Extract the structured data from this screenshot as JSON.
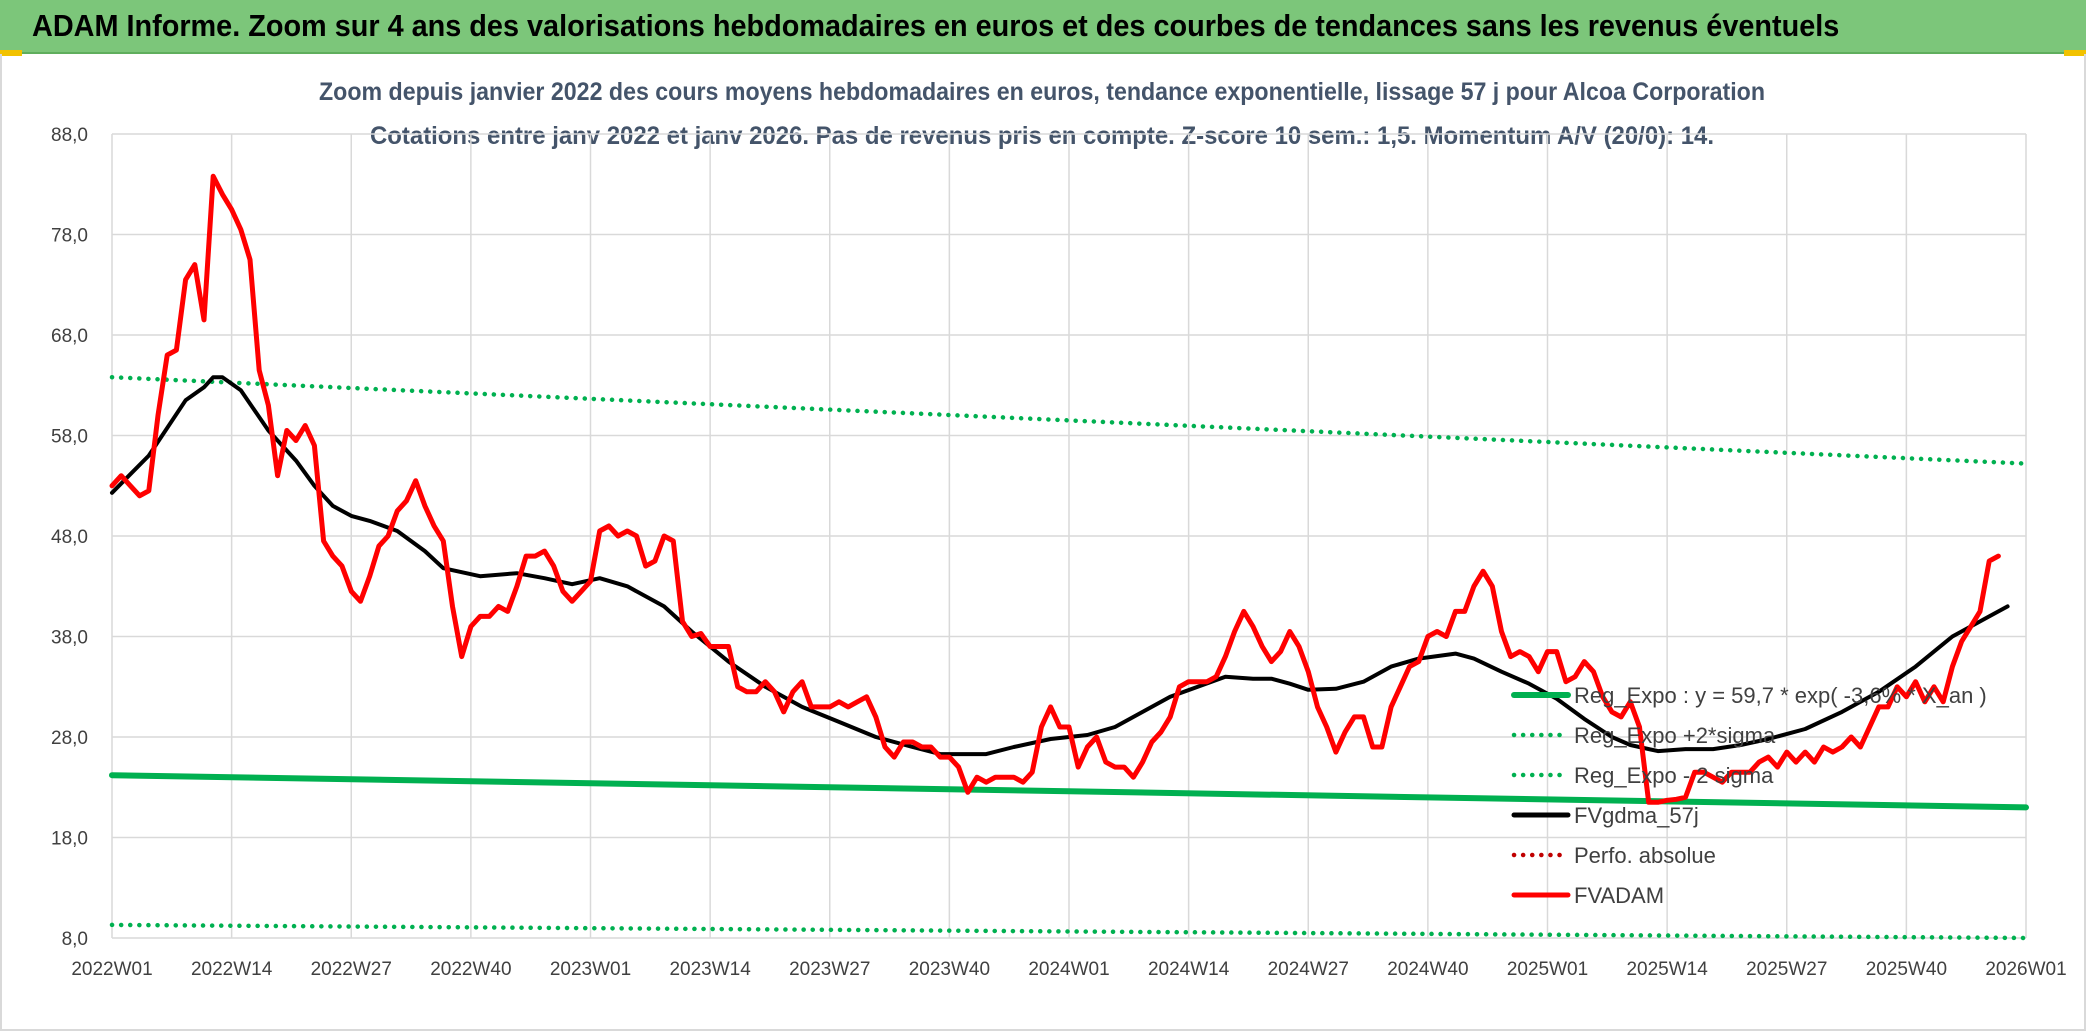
{
  "header": {
    "title": "ADAM Informe. Zoom sur 4 ans des valorisations hebdomadaires en euros et des courbes de tendances sans les revenus éventuels"
  },
  "colors": {
    "banner": "#7cc67a",
    "green": "#00b050",
    "red": "#ff0000",
    "black": "#000000",
    "red_dotted": "#c00000",
    "grid": "#d9d9d9",
    "axis_text": "#404040",
    "title_text": "#44546a"
  },
  "chart_data": {
    "type": "line",
    "title": "Zoom depuis janvier 2022 des cours moyens hebdomadaires en euros, tendance exponentielle, lissage 57 j pour Alcoa Corporation",
    "subtitle": "Cotations entre janv 2022 et janv 2026. Pas de revenus pris en compte. Z-score 10 sem.: 1,5. Momentum A/V (20/0): 14.",
    "xlabel": "",
    "ylabel": "",
    "ylim": [
      8,
      88
    ],
    "y_ticks": [
      "8,0",
      "18,0",
      "28,0",
      "38,0",
      "48,0",
      "58,0",
      "68,0",
      "78,0",
      "88,0"
    ],
    "x_ticks": [
      "2022W01",
      "2022W14",
      "2022W27",
      "2022W40",
      "2023W01",
      "2023W14",
      "2023W27",
      "2023W40",
      "2024W01",
      "2024W14",
      "2024W27",
      "2024W40",
      "2025W01",
      "2025W14",
      "2025W27",
      "2025W40",
      "2026W01"
    ],
    "grid": true,
    "legend_position": "right",
    "series": [
      {
        "name": "Reg_Expo : y = 59,7 * exp( -3,6% * X_an )",
        "style": "solid",
        "color": "#00b050",
        "values": [
          [
            0,
            24.2
          ],
          [
            208,
            21.0
          ]
        ]
      },
      {
        "name": "Reg_Expo +2*sigma",
        "style": "dotted",
        "color": "#00b050",
        "values": [
          [
            0,
            63.8
          ],
          [
            208,
            55.2
          ]
        ]
      },
      {
        "name": "Reg_Expo - 2 sigma",
        "style": "dotted",
        "color": "#00b050",
        "values": [
          [
            0,
            9.3
          ],
          [
            208,
            8.0
          ]
        ]
      },
      {
        "name": "FVgdma_57j",
        "style": "solid",
        "color": "#000000",
        "values": [
          [
            0,
            52.3
          ],
          [
            4,
            56
          ],
          [
            8,
            61.5
          ],
          [
            10,
            62.8
          ],
          [
            11,
            63.8
          ],
          [
            12,
            63.8
          ],
          [
            14,
            62.5
          ],
          [
            17,
            58.5
          ],
          [
            20,
            55.5
          ],
          [
            22,
            53
          ],
          [
            24,
            51
          ],
          [
            26,
            50
          ],
          [
            28,
            49.5
          ],
          [
            31,
            48.5
          ],
          [
            34,
            46.5
          ],
          [
            36,
            44.8
          ],
          [
            40,
            44
          ],
          [
            44,
            44.3
          ],
          [
            47,
            43.8
          ],
          [
            50,
            43.2
          ],
          [
            53,
            43.8
          ],
          [
            56,
            43
          ],
          [
            60,
            41
          ],
          [
            63,
            38.5
          ],
          [
            67,
            35.5
          ],
          [
            71,
            33
          ],
          [
            75,
            31
          ],
          [
            79,
            29.5
          ],
          [
            83,
            28
          ],
          [
            87,
            27
          ],
          [
            90,
            26.3
          ],
          [
            95,
            26.3
          ],
          [
            98,
            27
          ],
          [
            102,
            27.8
          ],
          [
            106,
            28.2
          ],
          [
            109,
            29
          ],
          [
            112,
            30.5
          ],
          [
            115,
            32
          ],
          [
            118,
            33
          ],
          [
            121,
            34
          ],
          [
            124,
            33.8
          ],
          [
            126,
            33.8
          ],
          [
            128,
            33.3
          ],
          [
            130,
            32.7
          ],
          [
            133,
            32.8
          ],
          [
            136,
            33.5
          ],
          [
            139,
            35
          ],
          [
            142,
            35.8
          ],
          [
            146,
            36.3
          ],
          [
            148,
            35.8
          ],
          [
            151,
            34.5
          ],
          [
            154,
            33.3
          ],
          [
            157,
            31.8
          ],
          [
            160,
            29.8
          ],
          [
            163,
            28
          ],
          [
            165,
            27.2
          ],
          [
            168,
            26.6
          ],
          [
            171,
            26.8
          ],
          [
            174,
            26.8
          ],
          [
            177,
            27.2
          ],
          [
            180,
            27.8
          ],
          [
            184,
            28.8
          ],
          [
            188,
            30.5
          ],
          [
            192,
            32.5
          ],
          [
            196,
            35
          ],
          [
            200,
            38
          ],
          [
            204,
            40
          ],
          [
            206,
            41
          ]
        ]
      },
      {
        "name": "Perfo. absolue",
        "style": "dotted",
        "color": "#c00000",
        "values": []
      },
      {
        "name": "FVADAM",
        "style": "solid",
        "color": "#ff0000",
        "values": [
          [
            0,
            53
          ],
          [
            1,
            54
          ],
          [
            2,
            53
          ],
          [
            3,
            52
          ],
          [
            4,
            52.5
          ],
          [
            5,
            60
          ],
          [
            6,
            66
          ],
          [
            7,
            66.5
          ],
          [
            8,
            73.5
          ],
          [
            9,
            75
          ],
          [
            10,
            69.5
          ],
          [
            11,
            83.8
          ],
          [
            12,
            82
          ],
          [
            13,
            80.5
          ],
          [
            14,
            78.5
          ],
          [
            15,
            75.5
          ],
          [
            16,
            64.5
          ],
          [
            17,
            61
          ],
          [
            18,
            54
          ],
          [
            19,
            58.5
          ],
          [
            20,
            57.5
          ],
          [
            21,
            59
          ],
          [
            22,
            57
          ],
          [
            23,
            47.5
          ],
          [
            24,
            46
          ],
          [
            25,
            45
          ],
          [
            26,
            42.5
          ],
          [
            27,
            41.5
          ],
          [
            28,
            44
          ],
          [
            29,
            47
          ],
          [
            30,
            48
          ],
          [
            31,
            50.5
          ],
          [
            32,
            51.5
          ],
          [
            33,
            53.5
          ],
          [
            34,
            51
          ],
          [
            35,
            49
          ],
          [
            36,
            47.5
          ],
          [
            37,
            41
          ],
          [
            38,
            36
          ],
          [
            39,
            39
          ],
          [
            40,
            40
          ],
          [
            41,
            40
          ],
          [
            42,
            41
          ],
          [
            43,
            40.5
          ],
          [
            44,
            43
          ],
          [
            45,
            46
          ],
          [
            46,
            46
          ],
          [
            47,
            46.5
          ],
          [
            48,
            45
          ],
          [
            49,
            42.5
          ],
          [
            50,
            41.5
          ],
          [
            51,
            42.5
          ],
          [
            52,
            43.5
          ],
          [
            53,
            48.5
          ],
          [
            54,
            49
          ],
          [
            55,
            48
          ],
          [
            56,
            48.5
          ],
          [
            57,
            48
          ],
          [
            58,
            45
          ],
          [
            59,
            45.5
          ],
          [
            60,
            48
          ],
          [
            61,
            47.5
          ],
          [
            62,
            39.5
          ],
          [
            63,
            38
          ],
          [
            64,
            38.3
          ],
          [
            65,
            37
          ],
          [
            66,
            37
          ],
          [
            67,
            37
          ],
          [
            68,
            33
          ],
          [
            69,
            32.5
          ],
          [
            70,
            32.5
          ],
          [
            71,
            33.5
          ],
          [
            72,
            32.5
          ],
          [
            73,
            30.5
          ],
          [
            74,
            32.5
          ],
          [
            75,
            33.5
          ],
          [
            76,
            31
          ],
          [
            77,
            31
          ],
          [
            78,
            31
          ],
          [
            79,
            31.5
          ],
          [
            80,
            31
          ],
          [
            81,
            31.5
          ],
          [
            82,
            32
          ],
          [
            83,
            30
          ],
          [
            84,
            27
          ],
          [
            85,
            26
          ],
          [
            86,
            27.5
          ],
          [
            87,
            27.5
          ],
          [
            88,
            27
          ],
          [
            89,
            27
          ],
          [
            90,
            26
          ],
          [
            91,
            26
          ],
          [
            92,
            25
          ],
          [
            93,
            22.5
          ],
          [
            94,
            24
          ],
          [
            95,
            23.5
          ],
          [
            96,
            24
          ],
          [
            97,
            24
          ],
          [
            98,
            24
          ],
          [
            99,
            23.5
          ],
          [
            100,
            24.5
          ],
          [
            101,
            29
          ],
          [
            102,
            31
          ],
          [
            103,
            29
          ],
          [
            104,
            29
          ],
          [
            105,
            25
          ],
          [
            106,
            27
          ],
          [
            107,
            28
          ],
          [
            108,
            25.5
          ],
          [
            109,
            25
          ],
          [
            110,
            25
          ],
          [
            111,
            24
          ],
          [
            112,
            25.5
          ],
          [
            113,
            27.5
          ],
          [
            114,
            28.5
          ],
          [
            115,
            30
          ],
          [
            116,
            33
          ],
          [
            117,
            33.5
          ],
          [
            118,
            33.5
          ],
          [
            119,
            33.5
          ],
          [
            120,
            34
          ],
          [
            121,
            36
          ],
          [
            122,
            38.5
          ],
          [
            123,
            40.5
          ],
          [
            124,
            39
          ],
          [
            125,
            37
          ],
          [
            126,
            35.5
          ],
          [
            127,
            36.5
          ],
          [
            128,
            38.5
          ],
          [
            129,
            37
          ],
          [
            130,
            34.5
          ],
          [
            131,
            31
          ],
          [
            132,
            29
          ],
          [
            133,
            26.5
          ],
          [
            134,
            28.5
          ],
          [
            135,
            30
          ],
          [
            136,
            30
          ],
          [
            137,
            27
          ],
          [
            138,
            27
          ],
          [
            139,
            31
          ],
          [
            140,
            33
          ],
          [
            141,
            35
          ],
          [
            142,
            35.5
          ],
          [
            143,
            38
          ],
          [
            144,
            38.5
          ],
          [
            145,
            38
          ],
          [
            146,
            40.5
          ],
          [
            147,
            40.5
          ],
          [
            148,
            43
          ],
          [
            149,
            44.5
          ],
          [
            150,
            43
          ],
          [
            151,
            38.5
          ],
          [
            152,
            36
          ],
          [
            153,
            36.5
          ],
          [
            154,
            36
          ],
          [
            155,
            34.5
          ],
          [
            156,
            36.5
          ],
          [
            157,
            36.5
          ],
          [
            158,
            33.5
          ],
          [
            159,
            34
          ],
          [
            160,
            35.5
          ],
          [
            161,
            34.5
          ],
          [
            162,
            32
          ],
          [
            163,
            30.5
          ],
          [
            164,
            30
          ],
          [
            165,
            31.5
          ],
          [
            166,
            29
          ],
          [
            167,
            21.5
          ],
          [
            168,
            21.5
          ],
          [
            169,
            21.7
          ],
          [
            170,
            21.8
          ],
          [
            171,
            22
          ],
          [
            172,
            24.5
          ],
          [
            173,
            24.5
          ],
          [
            174,
            24
          ],
          [
            175,
            23.5
          ],
          [
            176,
            24.5
          ],
          [
            177,
            24.5
          ],
          [
            178,
            24.5
          ],
          [
            179,
            25.5
          ],
          [
            180,
            26
          ],
          [
            181,
            25
          ],
          [
            182,
            26.5
          ],
          [
            183,
            25.5
          ],
          [
            184,
            26.5
          ],
          [
            185,
            25.5
          ],
          [
            186,
            27
          ],
          [
            187,
            26.5
          ],
          [
            188,
            27
          ],
          [
            189,
            28
          ],
          [
            190,
            27
          ],
          [
            191,
            29
          ],
          [
            192,
            31
          ],
          [
            193,
            31
          ],
          [
            194,
            33
          ],
          [
            195,
            32
          ],
          [
            196,
            33.5
          ],
          [
            197,
            31.5
          ],
          [
            198,
            33
          ],
          [
            199,
            31.5
          ],
          [
            200,
            35
          ],
          [
            201,
            37.5
          ],
          [
            202,
            39
          ],
          [
            203,
            40.5
          ],
          [
            204,
            45.5
          ],
          [
            205,
            46
          ]
        ]
      }
    ]
  }
}
